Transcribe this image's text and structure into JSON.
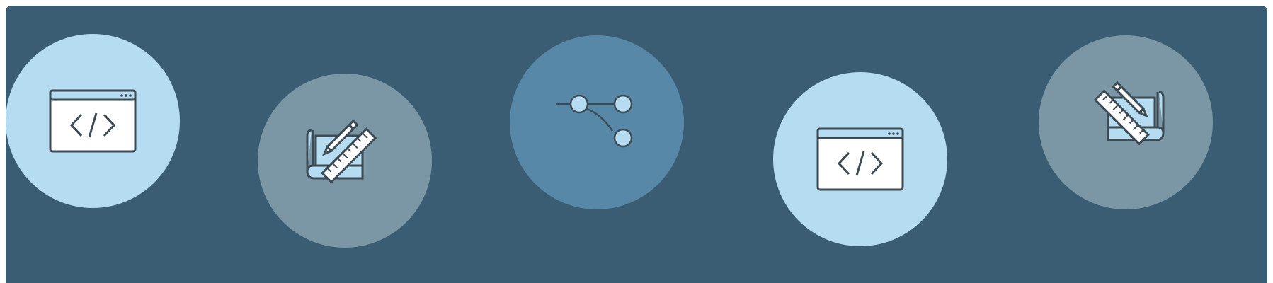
{
  "colors": {
    "background": "#3b5d73",
    "circle_light": "#b6dcf2",
    "circle_grey": "#7b97a5",
    "circle_mid": "#5888a8",
    "stroke": "#3d4b55",
    "icon_fill": "#b6dcf2",
    "white": "#ffffff"
  },
  "icons": [
    {
      "name": "code-window-icon",
      "circle": "circle_light"
    },
    {
      "name": "blueprint-pencil-ruler-icon",
      "circle": "circle_grey"
    },
    {
      "name": "branch-nodes-icon",
      "circle": "circle_mid"
    },
    {
      "name": "code-window-icon",
      "circle": "circle_light"
    },
    {
      "name": "blueprint-pencil-ruler-icon",
      "circle": "circle_grey"
    }
  ]
}
